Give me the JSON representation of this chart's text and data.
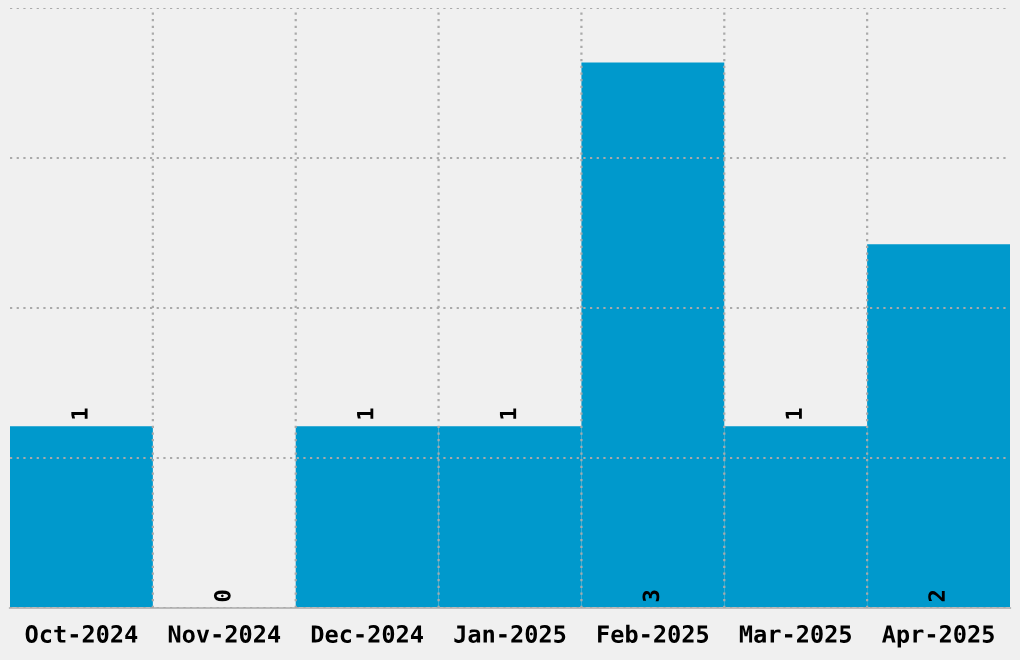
{
  "chart_data": {
    "type": "bar",
    "categories": [
      "Oct-2024",
      "Nov-2024",
      "Dec-2024",
      "Jan-2025",
      "Feb-2025",
      "Mar-2025",
      "Apr-2025"
    ],
    "values": [
      1,
      0,
      1,
      1,
      3,
      1,
      2
    ],
    "color": "#0099cc",
    "ylim": [
      0,
      3.3
    ],
    "yticks": [
      {
        "value": 0,
        "label": null
      },
      {
        "value": 0.825,
        "label": null
      },
      {
        "value": 1.65,
        "label": null
      },
      {
        "value": 2.475,
        "label": null
      },
      {
        "value": 3.3,
        "label": null
      }
    ],
    "tick_labels": "x",
    "grid": true,
    "data_labels": true
  }
}
